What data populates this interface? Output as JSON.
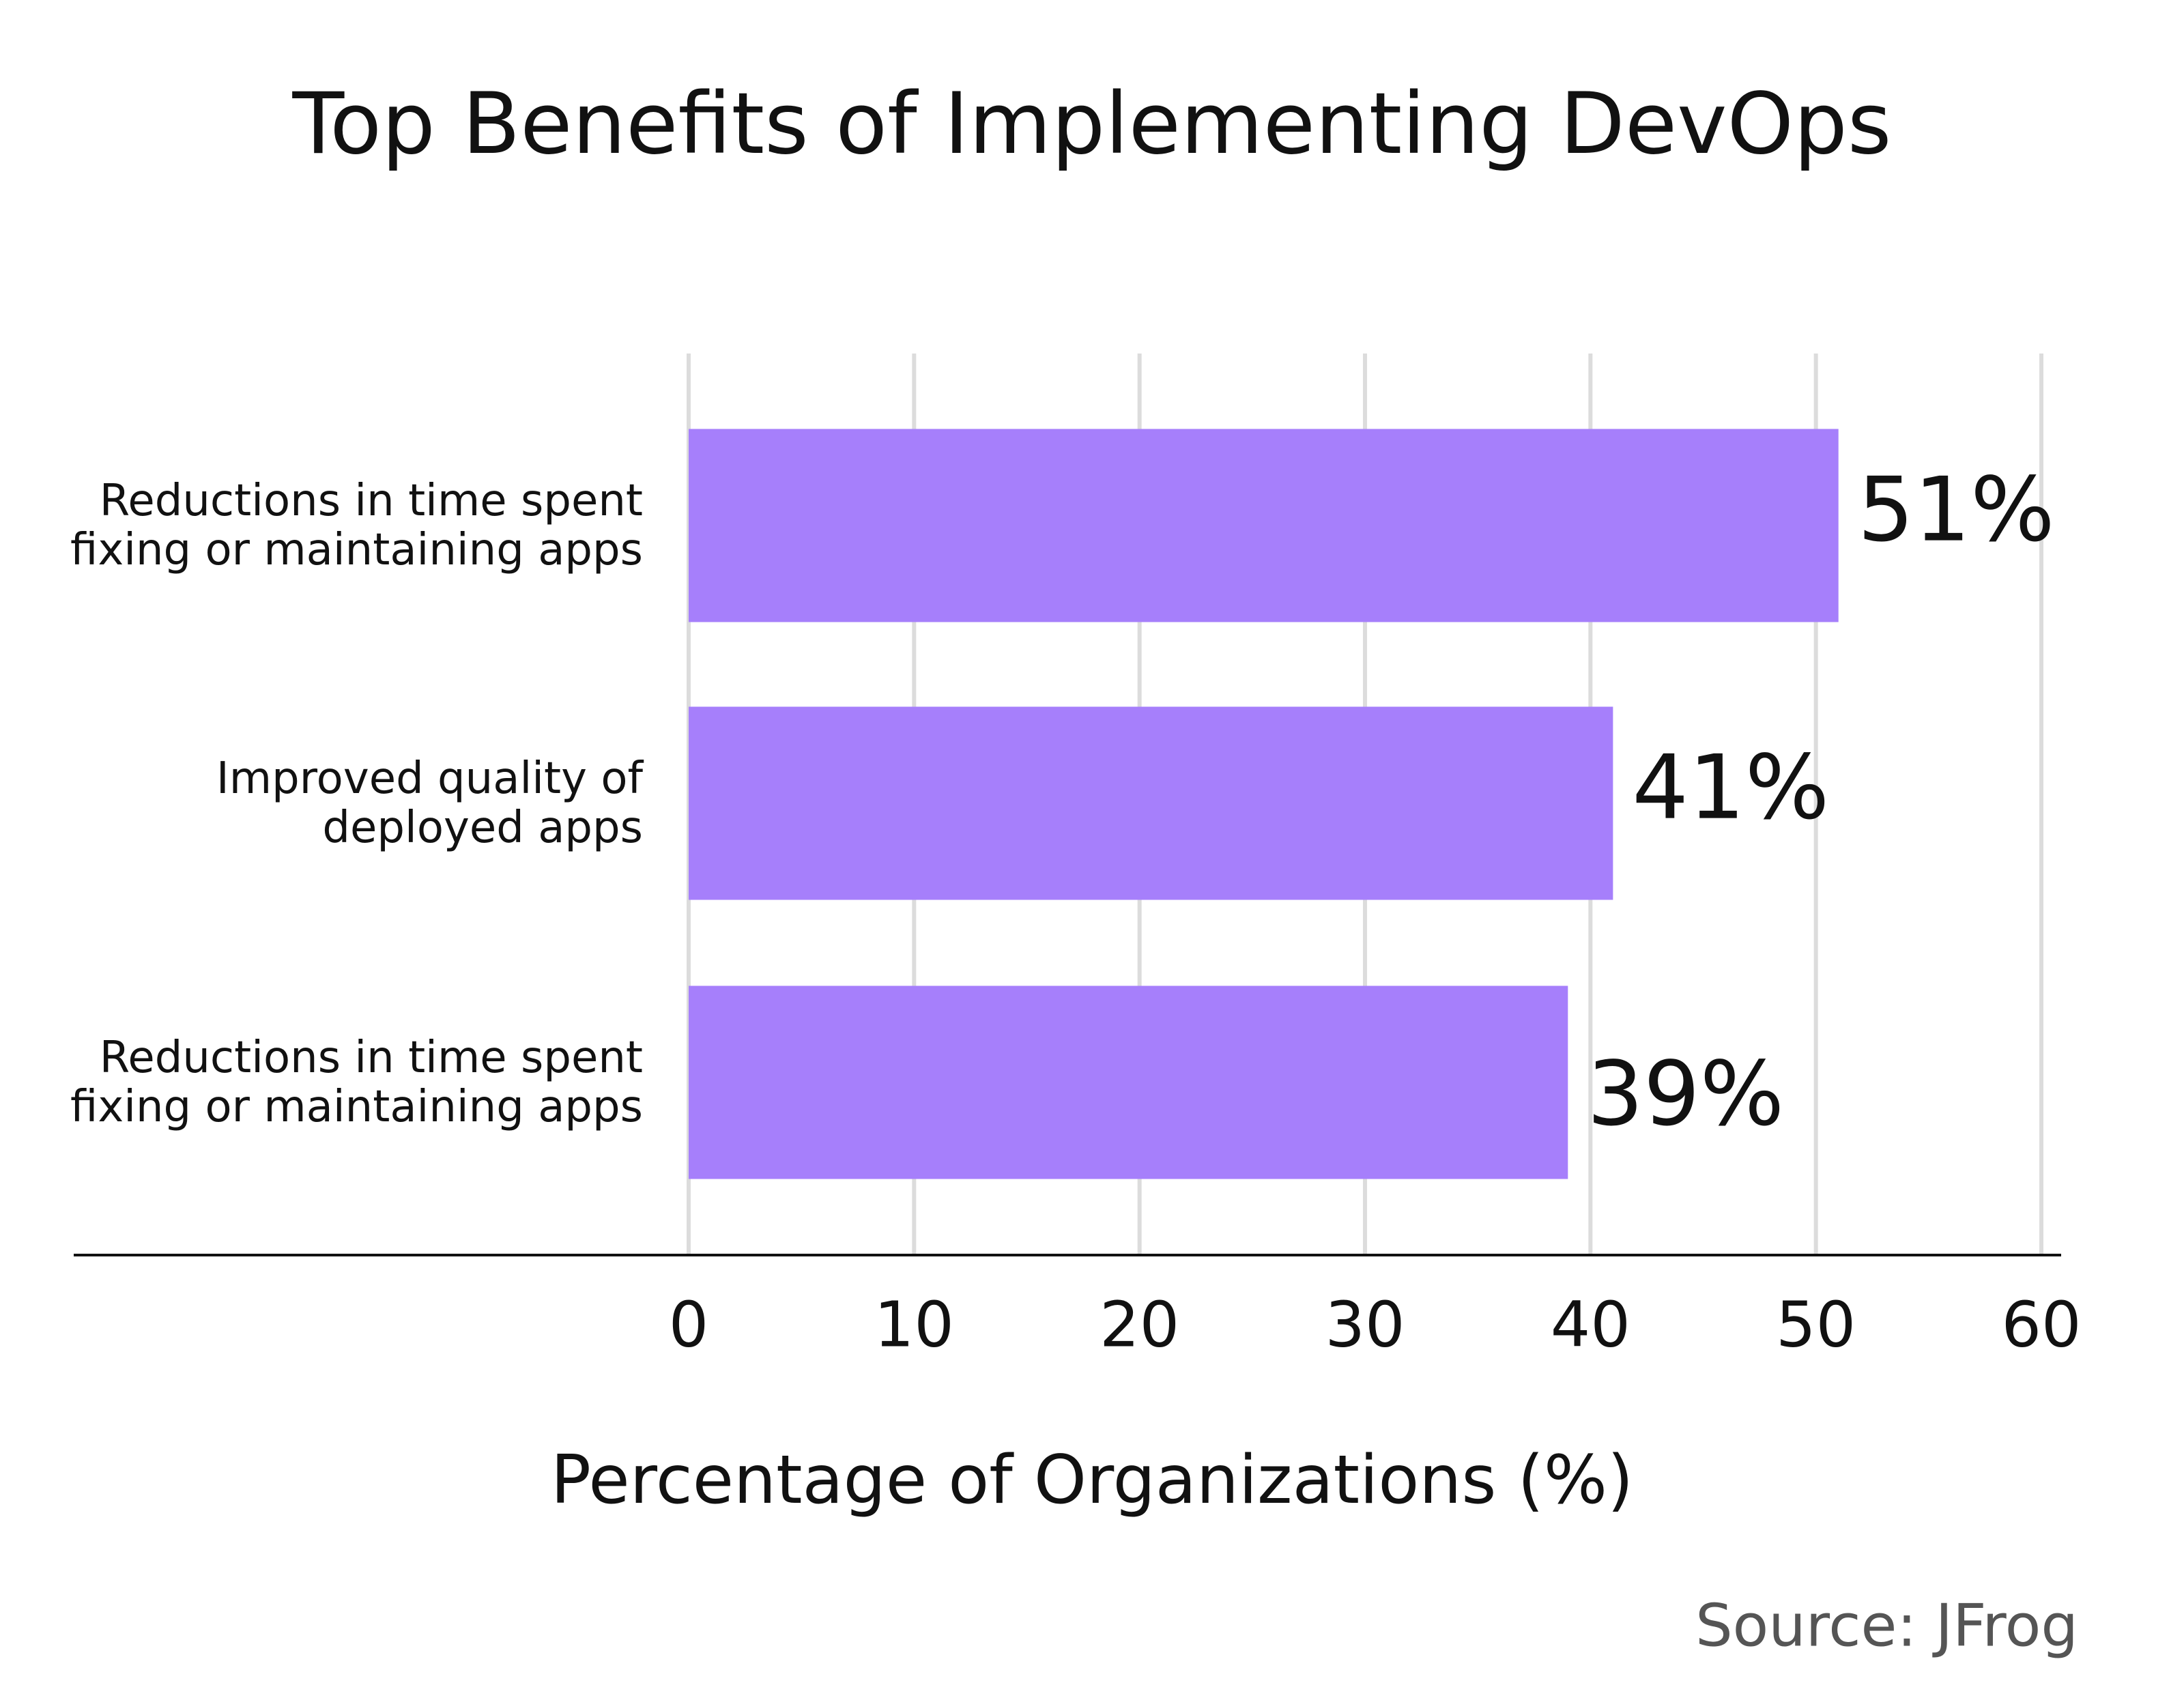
{
  "chart_data": {
    "type": "hbar",
    "title": "Top Benefits of Implementing DevOps",
    "categories": [
      "Reductions in time spent\nfixing or maintaining apps",
      "Improved quality of\ndeployed apps",
      "Reductions in time spent\nfixing or maintaining apps"
    ],
    "values": [
      51,
      41,
      39
    ],
    "value_labels": [
      "51%",
      "41%",
      "39%"
    ],
    "color": "#a67ffb",
    "xlim": [
      0,
      60
    ],
    "xticks": [
      0,
      10,
      20,
      30,
      40,
      50,
      60
    ],
    "xlabel": "Percentage of Organizations (%)",
    "grid": true,
    "source": "Source: JFrog"
  }
}
